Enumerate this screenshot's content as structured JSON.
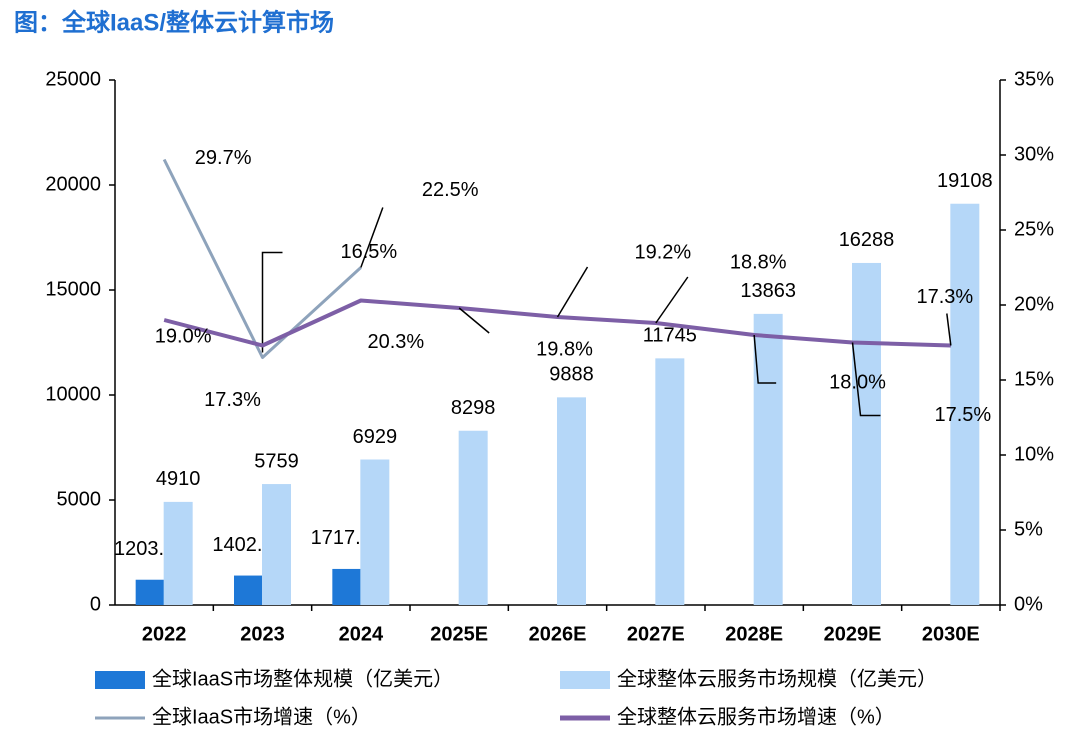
{
  "chart_data": {
    "type": "combo",
    "title": "图：全球IaaS/整体云计算市场",
    "categories": [
      "2022",
      "2023",
      "2024",
      "2025E",
      "2026E",
      "2027E",
      "2028E",
      "2029E",
      "2030E"
    ],
    "ylim": [
      0,
      25000
    ],
    "yticks": [
      0,
      5000,
      10000,
      15000,
      20000,
      25000
    ],
    "y2lim": [
      0,
      35
    ],
    "y2ticks": [
      {
        "value": 0,
        "label": "0%"
      },
      {
        "value": 5,
        "label": "5%"
      },
      {
        "value": 10,
        "label": "10%"
      },
      {
        "value": 15,
        "label": "15%"
      },
      {
        "value": 20,
        "label": "20%"
      },
      {
        "value": 25,
        "label": "25%"
      },
      {
        "value": 30,
        "label": "30%"
      },
      {
        "value": 35,
        "label": "35%"
      }
    ],
    "series": [
      {
        "name": "全球IaaS市场整体规模（亿美元）",
        "type": "bar",
        "color": "#1e78d7",
        "values": [
          1203.33,
          1402.04,
          1717.55,
          null,
          null,
          null,
          null,
          null,
          null
        ]
      },
      {
        "name": "全球整体云服务市场规模（亿美元）",
        "type": "bar",
        "color": "#b5d7f8",
        "values": [
          4910,
          5759,
          6929,
          8298,
          9888,
          11745,
          13863,
          16288,
          19108
        ]
      },
      {
        "name": "全球IaaS市场增速（%）",
        "type": "line",
        "axis": "y2",
        "color": "#8ea3bb",
        "values": [
          29.7,
          16.5,
          22.5,
          null,
          null,
          null,
          null,
          null,
          null
        ],
        "value_labels": [
          "29.7%",
          "16.5%",
          "22.5%",
          null,
          null,
          null,
          null,
          null,
          null
        ]
      },
      {
        "name": "全球整体云服务市场增速（%）",
        "type": "line",
        "axis": "y2",
        "color": "#7d5fa6",
        "values": [
          19.0,
          17.3,
          20.3,
          19.8,
          19.2,
          18.8,
          18.0,
          17.5,
          17.3
        ],
        "value_labels": [
          "19.0%",
          "17.3%",
          "20.3%",
          "19.8%",
          "19.2%",
          "18.8%",
          "18.0%",
          "17.5%",
          "17.3%"
        ]
      }
    ]
  }
}
